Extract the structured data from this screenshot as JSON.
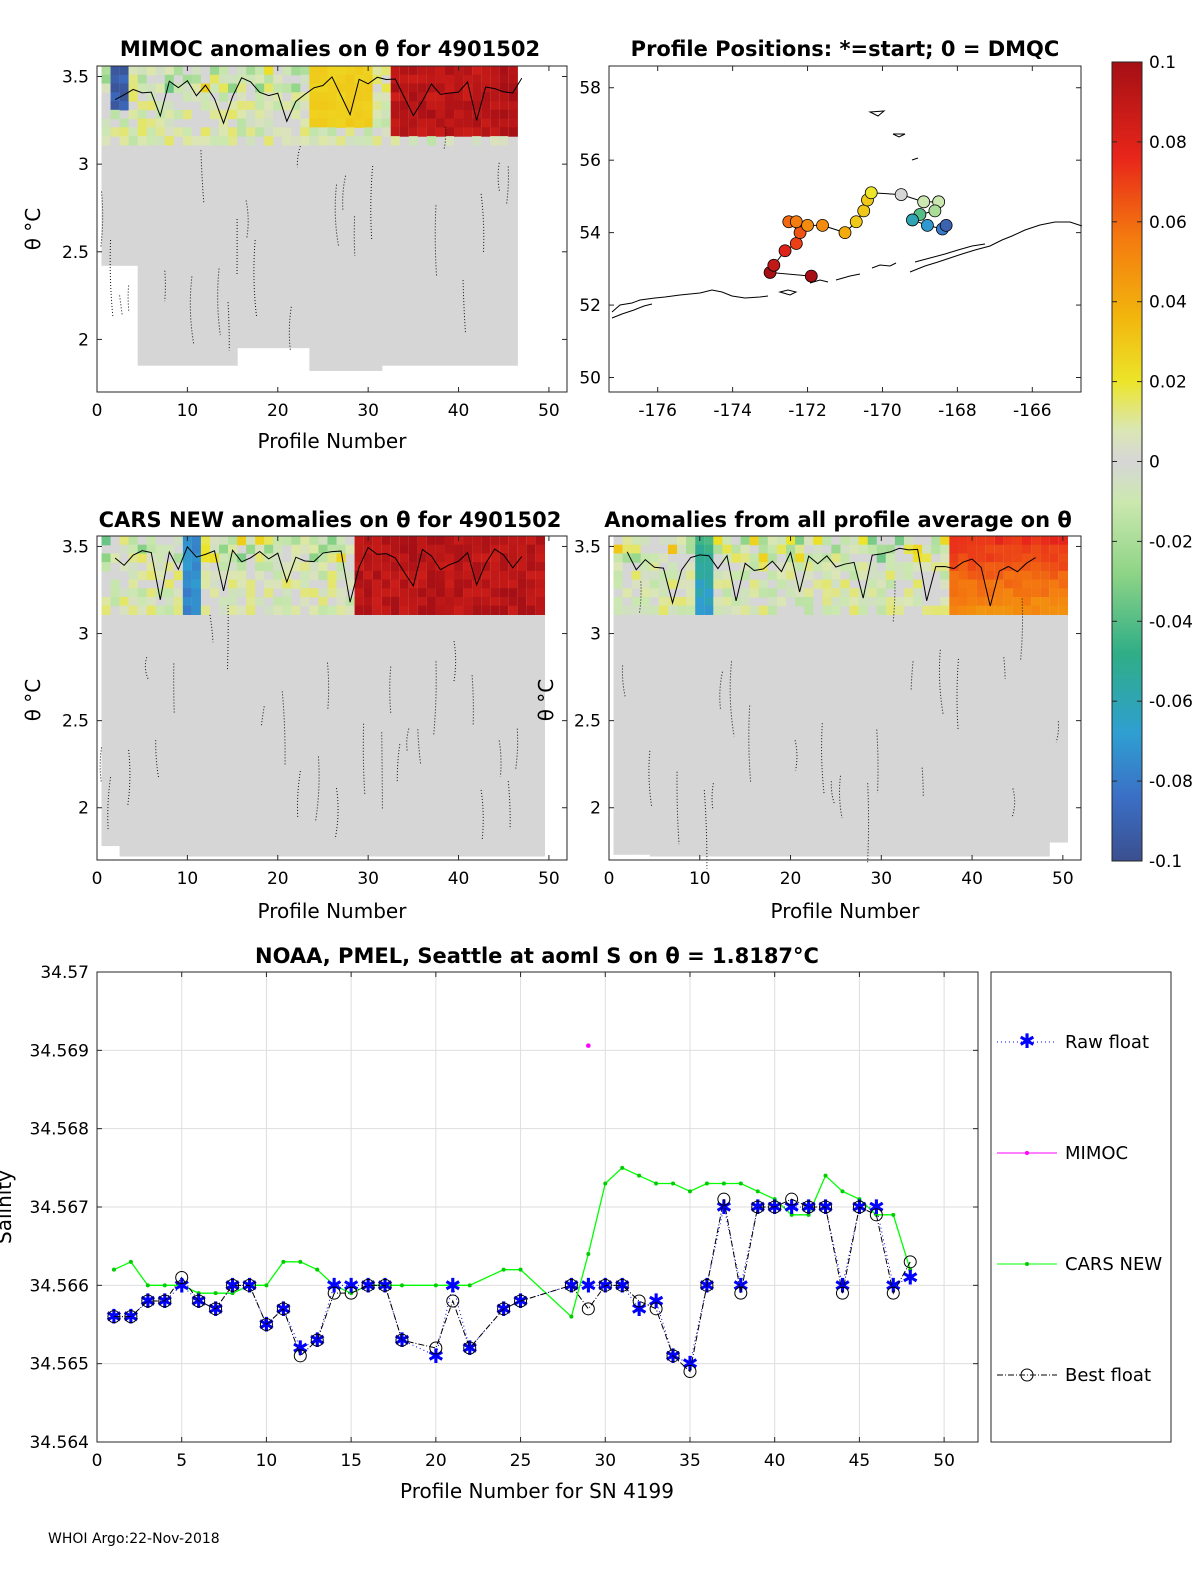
{
  "footer": "WHOI Argo:22-Nov-2018",
  "colors": {
    "anomaly_gray": "#d6d6d6",
    "raw_float": "#0000ff",
    "mimoc": "#ff00ff",
    "cars_new": "#00ff00",
    "best_float": "#000000"
  },
  "chart_data": [
    {
      "id": "mimoc_anom",
      "type": "heatmap",
      "title": "MIMOC anomalies on θ  for 4901502",
      "xlabel": "Profile Number",
      "ylabel": "θ °C",
      "xlim": [
        0,
        52
      ],
      "ylim": [
        1.7,
        3.56
      ],
      "xticks": [
        0,
        10,
        20,
        30,
        40,
        50
      ],
      "yticks": [
        2,
        2.5,
        3,
        3.5
      ],
      "anomaly_range": [
        -0.1,
        0.1
      ],
      "features": [
        {
          "profiles": [
            33,
            46
          ],
          "theta": [
            3.15,
            3.55
          ],
          "anomaly": 0.1
        },
        {
          "profiles": [
            2,
            3
          ],
          "theta": [
            3.3,
            3.5
          ],
          "anomaly": -0.1
        },
        {
          "profiles": [
            24,
            30
          ],
          "theta": [
            3.2,
            3.5
          ],
          "anomaly": 0.03
        }
      ]
    },
    {
      "id": "positions",
      "type": "scatter",
      "title": "Profile Positions: *=start; 0 = DMQC",
      "xlim": [
        -177.3,
        -164.7
      ],
      "ylim": [
        49.6,
        58.6
      ],
      "xticks": [
        -176,
        -174,
        -172,
        -170,
        -168,
        -166
      ],
      "yticks": [
        50,
        52,
        54,
        56,
        58
      ],
      "lon": [
        -171.9,
        -173.0,
        -172.9,
        -172.6,
        -172.3,
        -172.2,
        -172.5,
        -172.3,
        -172.0,
        -171.6,
        -171.0,
        -170.7,
        -170.5,
        -170.4,
        -170.3,
        -169.5,
        -168.9,
        -168.5,
        -168.6,
        -169.0,
        -169.2,
        -168.8,
        -168.4,
        -168.3
      ],
      "lat": [
        52.8,
        52.9,
        53.1,
        53.5,
        53.7,
        54.0,
        54.3,
        54.3,
        54.2,
        54.2,
        54.0,
        54.3,
        54.6,
        54.9,
        55.1,
        55.05,
        54.85,
        54.85,
        54.6,
        54.5,
        54.35,
        54.2,
        54.1,
        54.2
      ],
      "anomaly": [
        0.1,
        0.1,
        0.09,
        0.08,
        0.07,
        0.065,
        0.06,
        0.055,
        0.05,
        0.05,
        0.04,
        0.03,
        0.03,
        0.03,
        0.02,
        0.0,
        -0.01,
        -0.01,
        -0.02,
        -0.04,
        -0.06,
        -0.07,
        -0.08,
        -0.09
      ]
    },
    {
      "id": "colorbar",
      "type": "heatmap",
      "range": [
        -0.1,
        0.1
      ],
      "ticks": [
        "0.1",
        "0.08",
        "0.06",
        "0.04",
        "0.02",
        "0",
        "-0.02",
        "-0.04",
        "-0.06",
        "-0.08",
        "-0.1"
      ]
    },
    {
      "id": "cars_anom",
      "type": "heatmap",
      "title": "CARS NEW anomalies on θ for 4901502",
      "xlabel": "Profile Number",
      "ylabel": "θ °C",
      "xlim": [
        0,
        52
      ],
      "ylim": [
        1.7,
        3.56
      ],
      "xticks": [
        0,
        10,
        20,
        30,
        40,
        50
      ],
      "yticks": [
        2,
        2.5,
        3,
        3.5
      ],
      "features": [
        {
          "profiles": [
            29,
            49
          ],
          "theta": [
            3.05,
            3.55
          ],
          "anomaly": 0.1
        },
        {
          "profiles": [
            10,
            11
          ],
          "theta": [
            3.1,
            3.55
          ],
          "anomaly": -0.08
        }
      ]
    },
    {
      "id": "avg_anom",
      "type": "heatmap",
      "title": "Anomalies from all profile average on θ",
      "xlabel": "Profile Number",
      "ylabel": "θ °C",
      "xlim": [
        0,
        52
      ],
      "ylim": [
        1.7,
        3.56
      ],
      "xticks": [
        0,
        10,
        20,
        30,
        40,
        50
      ],
      "yticks": [
        2,
        2.5,
        3,
        3.5
      ],
      "features": [
        {
          "profiles": [
            38,
            51
          ],
          "theta": [
            3.1,
            3.55
          ],
          "anomaly": 0.05
        },
        {
          "profiles": [
            10,
            11
          ],
          "theta": [
            3.1,
            3.55
          ],
          "anomaly": -0.08
        }
      ]
    },
    {
      "id": "salinity",
      "type": "line",
      "title": "NOAA, PMEL, Seattle at aoml S on θ = 1.8187°C",
      "xlabel": "Profile Number for SN 4199",
      "ylabel": "Salinity",
      "xlim": [
        0,
        52
      ],
      "ylim": [
        34.564,
        34.57
      ],
      "xticks": [
        0,
        5,
        10,
        15,
        20,
        25,
        30,
        35,
        40,
        45,
        50
      ],
      "yticks": [
        "34.564",
        "34.565",
        "34.566",
        "34.567",
        "34.568",
        "34.569",
        "34.57"
      ],
      "legend": [
        "Raw float",
        "MIMOC",
        "CARS NEW",
        "Best float"
      ],
      "series": [
        {
          "name": "Raw float",
          "x": [
            1,
            2,
            3,
            4,
            5,
            6,
            7,
            8,
            9,
            10,
            11,
            12,
            13,
            14,
            15,
            16,
            17,
            18,
            20,
            21,
            22,
            24,
            25,
            28,
            29,
            30,
            31,
            32,
            33,
            34,
            35,
            36,
            37,
            38,
            39,
            40,
            41,
            42,
            43,
            44,
            45,
            46,
            47,
            48
          ],
          "y": [
            34.5656,
            34.5656,
            34.5658,
            34.5658,
            34.566,
            34.5658,
            34.5657,
            34.566,
            34.566,
            34.5655,
            34.5657,
            34.5652,
            34.5653,
            34.566,
            34.566,
            34.566,
            34.566,
            34.5653,
            34.5651,
            34.566,
            34.5652,
            34.5657,
            34.5658,
            34.566,
            34.566,
            34.566,
            34.566,
            34.5657,
            34.5658,
            34.5651,
            34.565,
            34.566,
            34.567,
            34.566,
            34.567,
            34.567,
            34.567,
            34.567,
            34.567,
            34.566,
            34.567,
            34.567,
            34.566,
            34.5661
          ]
        },
        {
          "name": "MIMOC",
          "x": [
            29
          ],
          "y": [
            34.56906
          ]
        },
        {
          "name": "CARS NEW",
          "x": [
            1,
            2,
            3,
            4,
            5,
            6,
            7,
            8,
            9,
            10,
            11,
            12,
            13,
            14,
            15,
            16,
            17,
            18,
            20,
            21,
            22,
            24,
            25,
            28,
            29,
            30,
            31,
            32,
            33,
            34,
            35,
            36,
            37,
            38,
            39,
            40,
            41,
            42,
            43,
            44,
            45,
            46,
            47,
            48
          ],
          "y": [
            34.5662,
            34.5663,
            34.566,
            34.566,
            34.566,
            34.5659,
            34.5659,
            34.5659,
            34.566,
            34.566,
            34.5663,
            34.5663,
            34.5662,
            34.566,
            34.5659,
            34.566,
            34.566,
            34.566,
            34.566,
            34.566,
            34.566,
            34.5662,
            34.5662,
            34.5656,
            34.5664,
            34.5673,
            34.5675,
            34.5674,
            34.5673,
            34.5673,
            34.5672,
            34.5673,
            34.5673,
            34.5673,
            34.5672,
            34.5671,
            34.5669,
            34.5669,
            34.5674,
            34.5672,
            34.5671,
            34.5669,
            34.5669,
            34.5662
          ]
        },
        {
          "name": "Best float",
          "x": [
            1,
            2,
            3,
            4,
            5,
            6,
            7,
            8,
            9,
            10,
            11,
            12,
            13,
            14,
            15,
            16,
            17,
            18,
            20,
            21,
            22,
            24,
            25,
            28,
            29,
            30,
            31,
            32,
            33,
            34,
            35,
            36,
            37,
            38,
            39,
            40,
            41,
            42,
            43,
            44,
            45,
            46,
            47,
            48
          ],
          "y": [
            34.5656,
            34.5656,
            34.5658,
            34.5658,
            34.5661,
            34.5658,
            34.5657,
            34.566,
            34.566,
            34.5655,
            34.5657,
            34.5651,
            34.5653,
            34.5659,
            34.5659,
            34.566,
            34.566,
            34.5653,
            34.5652,
            34.5658,
            34.5652,
            34.5657,
            34.5658,
            34.566,
            34.5657,
            34.566,
            34.566,
            34.5658,
            34.5657,
            34.5651,
            34.5649,
            34.566,
            34.5671,
            34.5659,
            34.567,
            34.567,
            34.5671,
            34.567,
            34.567,
            34.5659,
            34.567,
            34.5669,
            34.5659,
            34.5663
          ]
        }
      ]
    }
  ]
}
